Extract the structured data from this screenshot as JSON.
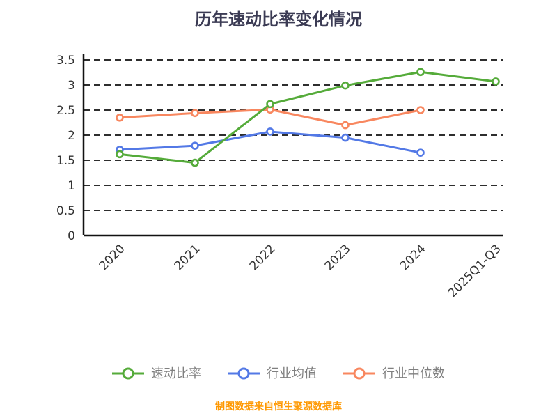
{
  "title": "历年速动比率变化情况",
  "footer": "制图数据来自恒生聚源数据库",
  "chart_data": {
    "type": "line",
    "title": "历年速动比率变化情况",
    "xlabel": "",
    "ylabel": "",
    "categories": [
      "2020",
      "2021",
      "2022",
      "2023",
      "2024",
      "2025Q1-Q3"
    ],
    "series": [
      {
        "name": "速动比率",
        "color": "#55ab3a",
        "values": [
          1.62,
          1.45,
          2.62,
          2.99,
          3.26,
          3.07
        ]
      },
      {
        "name": "行业均值",
        "color": "#5379e6",
        "values": [
          1.71,
          1.79,
          2.07,
          1.95,
          1.65,
          null
        ]
      },
      {
        "name": "行业中位数",
        "color": "#f8875f",
        "values": [
          2.35,
          2.44,
          2.51,
          2.2,
          2.5,
          null
        ]
      }
    ],
    "ylim": [
      0,
      3.5
    ],
    "yticks": [
      0,
      0.5,
      1,
      1.5,
      2,
      2.5,
      3,
      3.5
    ],
    "grid": "horizontal-dashed",
    "legend_position": "bottom",
    "marker": "circle-open"
  }
}
